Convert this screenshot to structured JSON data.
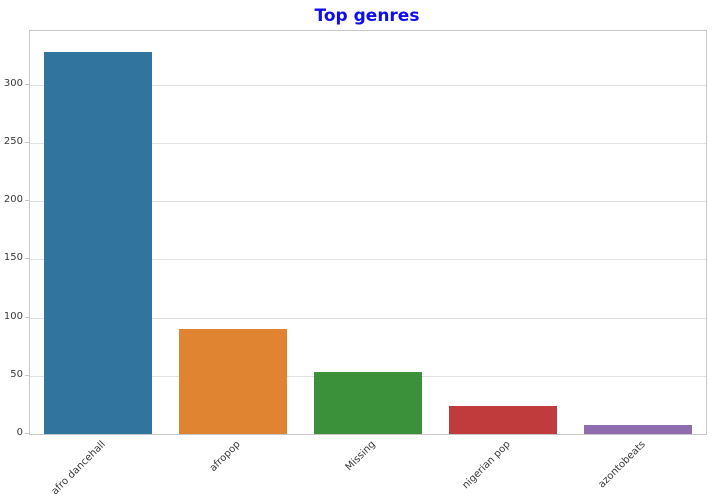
{
  "title": "Top genres",
  "colors": {
    "title": "#0d0dee",
    "gridline": "#e2e2e2",
    "plot_border": "#c6c6c6",
    "tick_text": "#3a3a3a",
    "background": "#ffffff"
  },
  "chart_data": {
    "type": "bar",
    "title": "Top genres",
    "categories": [
      "afro dancehall",
      "afropop",
      "Missing",
      "nigerian pop",
      "azontobeats"
    ],
    "values": [
      328,
      90,
      53,
      24,
      8
    ],
    "bar_colors": [
      "#31749e",
      "#e08432",
      "#3b9139",
      "#c03c3c",
      "#8f6cae"
    ],
    "xlabel": "",
    "ylabel": "",
    "ylim": [
      0,
      346
    ],
    "yticks": [
      0,
      50,
      100,
      150,
      200,
      250,
      300
    ],
    "xtick_rotation_deg": 45,
    "bar_width_fraction": 0.8,
    "grid": true,
    "legend_position": "none"
  }
}
